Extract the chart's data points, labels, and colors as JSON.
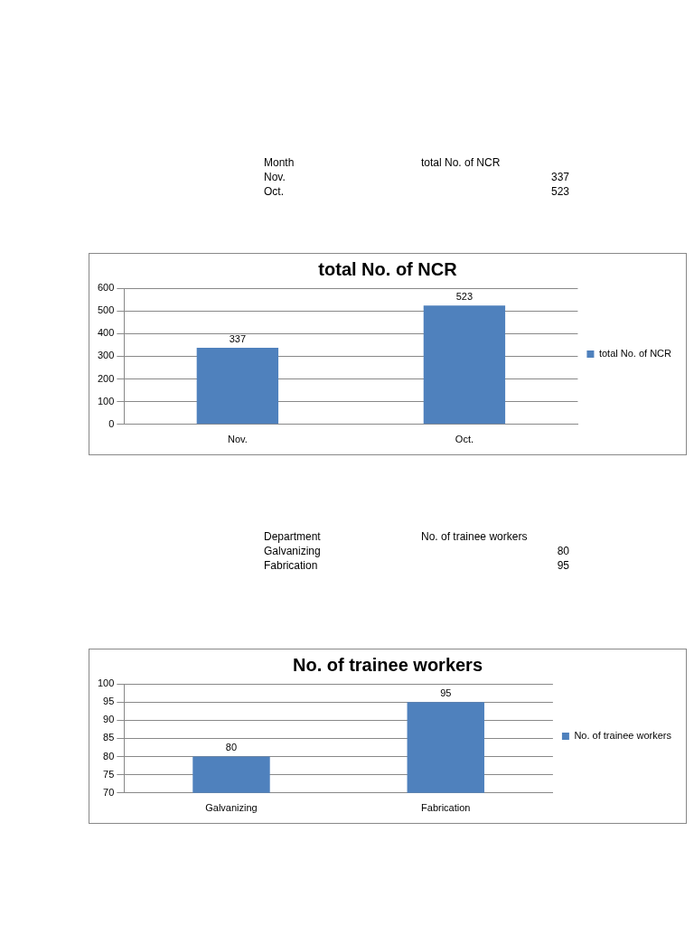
{
  "chart_data": [
    {
      "type": "bar",
      "title": "total No. of NCR",
      "categories": [
        "Nov.",
        "Oct."
      ],
      "annotations": [
        "Month"
      ],
      "series": [
        {
          "name": "total No. of NCR",
          "color": "#4f81bd",
          "values": [
            337,
            523
          ],
          "value_labels": [
            "337",
            "523"
          ]
        }
      ],
      "ylim": [
        0,
        600
      ],
      "yticks": [
        0,
        100,
        200,
        300,
        400,
        500,
        600
      ],
      "grid": "y",
      "legend": "right",
      "data_labels": true
    },
    {
      "type": "bar",
      "title": "No. of trainee workers",
      "categories": [
        "Galvanizing",
        "Fabrication"
      ],
      "annotations": [
        "Department"
      ],
      "series": [
        {
          "name": "No. of trainee workers",
          "color": "#4f81bd",
          "values": [
            80,
            95
          ],
          "value_labels": [
            "80",
            "95"
          ]
        }
      ],
      "ylim": [
        70,
        100
      ],
      "yticks": [
        70,
        75,
        80,
        85,
        90,
        95,
        100
      ],
      "grid": "y",
      "legend": "right",
      "data_labels": true
    }
  ]
}
